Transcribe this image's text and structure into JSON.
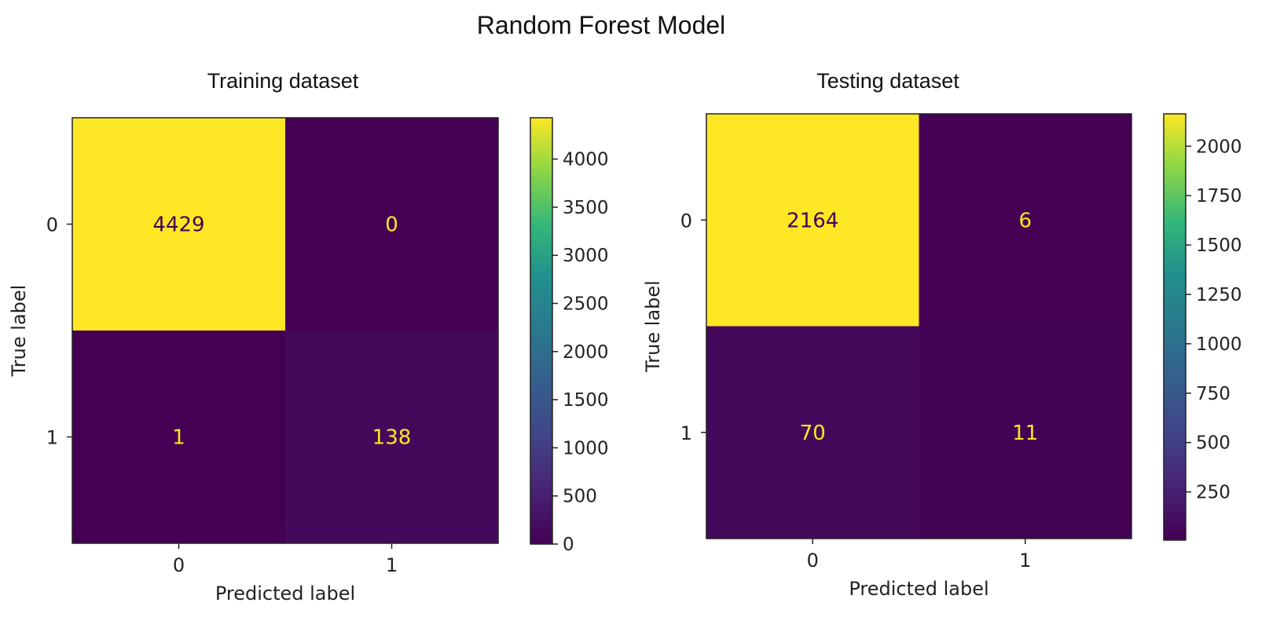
{
  "title": "Random Forest Model",
  "colors": {
    "low": "#440154",
    "high": "#fde725",
    "text_on_dark": "#fde725",
    "text_on_light": "#440154"
  },
  "chart_data": [
    {
      "type": "heatmap",
      "title": "Training dataset",
      "xlabel": "Predicted label",
      "ylabel": "True label",
      "x_categories": [
        "0",
        "1"
      ],
      "y_categories": [
        "0",
        "1"
      ],
      "values": [
        [
          4429,
          0
        ],
        [
          1,
          138
        ]
      ],
      "colorbar": {
        "min": 0,
        "max": 4429,
        "ticks": [
          0,
          500,
          1000,
          1500,
          2000,
          2500,
          3000,
          3500,
          4000
        ],
        "tick_labels": [
          "0",
          "500",
          "1000",
          "1500",
          "2000",
          "2500",
          "3000",
          "3500",
          "4000"
        ]
      },
      "colormap": "viridis"
    },
    {
      "type": "heatmap",
      "title": "Testing dataset",
      "xlabel": "Predicted label",
      "ylabel": "True label",
      "x_categories": [
        "0",
        "1"
      ],
      "y_categories": [
        "0",
        "1"
      ],
      "values": [
        [
          2164,
          6
        ],
        [
          70,
          11
        ]
      ],
      "colorbar": {
        "min": 6,
        "max": 2164,
        "ticks": [
          250,
          500,
          750,
          1000,
          1250,
          1500,
          1750,
          2000
        ],
        "tick_labels": [
          "250",
          "500",
          "750",
          "1000",
          "1250",
          "1500",
          "1750",
          "2000"
        ]
      },
      "colormap": "viridis"
    }
  ]
}
